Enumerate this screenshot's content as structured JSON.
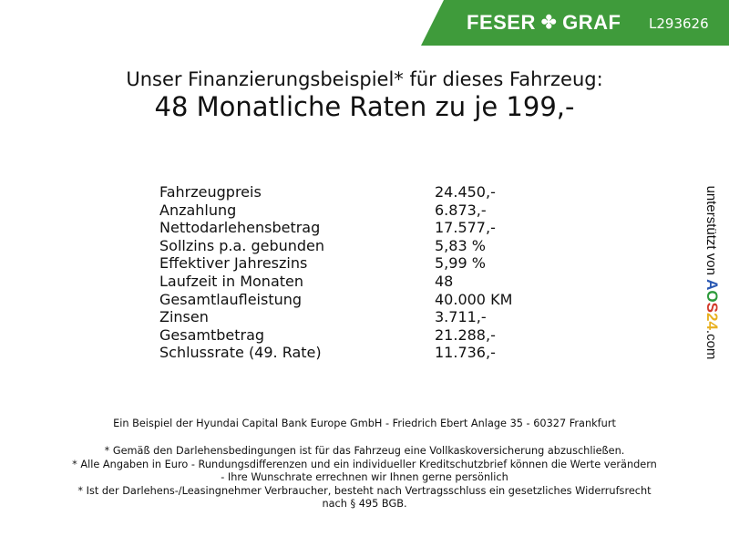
{
  "header": {
    "brand": "FESER",
    "brand2": "GRAF",
    "brand_icon": "clover-icon",
    "listing_code": "L293626",
    "brand_color": "#3f9b3b"
  },
  "title": {
    "line1": "Unser Finanzierungsbeispiel* für dieses Fahrzeug:",
    "line2": "48 Monatliche Raten zu je 199,-"
  },
  "rows": [
    {
      "label": "Fahrzeugpreis",
      "value": "24.450,-"
    },
    {
      "label": "Anzahlung",
      "value": "6.873,-"
    },
    {
      "label": "Nettodarlehensbetrag",
      "value": "17.577,-"
    },
    {
      "label": "Sollzins p.a. gebunden",
      "value": "5,83 %"
    },
    {
      "label": "Effektiver Jahreszins",
      "value": "5,99 %"
    },
    {
      "label": "Laufzeit in Monaten",
      "value": "48"
    },
    {
      "label": "Gesamtlaufleistung",
      "value": "40.000 KM"
    },
    {
      "label": "Zinsen",
      "value": "3.711,-"
    },
    {
      "label": "Gesamtbetrag",
      "value": "21.288,-"
    },
    {
      "label": "Schlussrate (49. Rate)",
      "value": "11.736,-"
    }
  ],
  "side": {
    "text": "unterstützt von",
    "logo": "AOS24",
    "suffix": ".com"
  },
  "footer": {
    "bank": "Ein Beispiel der Hyundai Capital Bank Europe GmbH - Friedrich Ebert Anlage 35 - 60327 Frankfurt",
    "note1": "* Gemäß den Darlehensbedingungen ist für das Fahrzeug eine Vollkaskoversicherung abzuschließen.",
    "note2a": "* Alle Angaben in Euro - Rundungsdifferenzen und ein individueller Kreditschutzbrief können die Werte verändern",
    "note2b": "- Ihre Wunschrate errechnen wir Ihnen gerne persönlich",
    "note3a": "* Ist der Darlehens-/Leasingnehmer Verbraucher, besteht nach Vertragsschluss ein gesetzliches Widerrufsrecht",
    "note3b": "nach § 495 BGB."
  }
}
